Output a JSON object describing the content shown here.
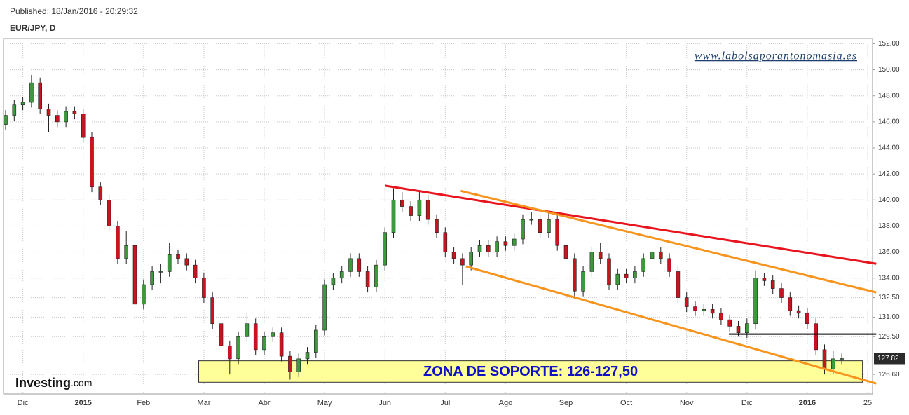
{
  "header": {
    "published": "Published: 18/Jan/2016 - 20:29:32",
    "symbol": "EUR/JPY, D"
  },
  "chart_data": {
    "type": "candlestick",
    "categories": [
      null,
      null,
      "Dic",
      null,
      null,
      null,
      null,
      null,
      null,
      "2015",
      null,
      null,
      null,
      null,
      null,
      null,
      "Feb",
      null,
      null,
      null,
      null,
      null,
      null,
      "Mar",
      null,
      null,
      null,
      null,
      null,
      null,
      "Abr",
      null,
      null,
      null,
      null,
      null,
      null,
      "May",
      null,
      null,
      null,
      null,
      null,
      null,
      "Jun",
      null,
      null,
      null,
      null,
      null,
      null,
      "Jul",
      null,
      null,
      null,
      null,
      null,
      null,
      "Ago",
      null,
      null,
      null,
      null,
      null,
      null,
      "Sep",
      null,
      null,
      null,
      null,
      null,
      null,
      "Oct",
      null,
      null,
      null,
      null,
      null,
      null,
      "Nov",
      null,
      null,
      null,
      null,
      null,
      null,
      "Dic",
      null,
      null,
      null,
      null,
      null,
      null,
      "2016",
      null,
      null,
      null,
      null,
      null,
      null,
      "25"
    ],
    "ohlc": [
      [
        145.8,
        146.9,
        145.4,
        146.5
      ],
      [
        146.5,
        147.7,
        146.1,
        147.3
      ],
      [
        147.3,
        147.9,
        146.9,
        147.5
      ],
      [
        147.5,
        149.6,
        147.1,
        149
      ],
      [
        149,
        149.4,
        146.6,
        147
      ],
      [
        147,
        147.4,
        145.2,
        146.5
      ],
      [
        146.5,
        146.9,
        145.6,
        146
      ],
      [
        146,
        147.2,
        145.6,
        146.8
      ],
      [
        146.8,
        147.2,
        146.2,
        146.6
      ],
      [
        146.6,
        147,
        144.4,
        144.8
      ],
      [
        144.8,
        145.2,
        140.6,
        141
      ],
      [
        141,
        141.4,
        139.6,
        140
      ],
      [
        140,
        140.4,
        137.6,
        138
      ],
      [
        138,
        138.4,
        135.1,
        135.5
      ],
      [
        135.5,
        137.6,
        135.1,
        136.5
      ],
      [
        136.5,
        136.9,
        130,
        132
      ],
      [
        132,
        133.9,
        131.6,
        133.5
      ],
      [
        133.5,
        134.9,
        133.1,
        134.5
      ],
      [
        134.5,
        135.1,
        133.6,
        134.5
      ],
      [
        134.5,
        136.7,
        134.1,
        135.8
      ],
      [
        135.8,
        136.2,
        135.1,
        135.5
      ],
      [
        135.5,
        135.9,
        134.6,
        135
      ],
      [
        135,
        135.4,
        133.6,
        134
      ],
      [
        134,
        134.4,
        132.1,
        132.5
      ],
      [
        132.5,
        132.9,
        130.1,
        130.5
      ],
      [
        130.5,
        130.9,
        128.4,
        128.8
      ],
      [
        128.8,
        129.2,
        126.6,
        127.8
      ],
      [
        127.8,
        129.9,
        127.4,
        129.5
      ],
      [
        129.5,
        131.3,
        129.1,
        130.5
      ],
      [
        130.5,
        130.9,
        128.1,
        128.5
      ],
      [
        128.5,
        129.9,
        128.1,
        129.5
      ],
      [
        129.5,
        130.2,
        129.1,
        129.8
      ],
      [
        129.8,
        130.2,
        127.6,
        128
      ],
      [
        128,
        128.4,
        126.2,
        126.8
      ],
      [
        126.8,
        128.2,
        126.4,
        127.8
      ],
      [
        127.8,
        128.7,
        127.4,
        128.3
      ],
      [
        128.3,
        130.4,
        127.9,
        130
      ],
      [
        130,
        133.9,
        129.6,
        133.5
      ],
      [
        133.5,
        134.4,
        133.1,
        134
      ],
      [
        134,
        134.9,
        133.6,
        134.5
      ],
      [
        134.5,
        135.9,
        134.1,
        135.5
      ],
      [
        135.5,
        135.9,
        134.1,
        134.5
      ],
      [
        134.5,
        134.9,
        132.9,
        133.3
      ],
      [
        133.3,
        135.4,
        132.9,
        135
      ],
      [
        135,
        137.9,
        134.6,
        137.5
      ],
      [
        137.5,
        140.9,
        137.1,
        140
      ],
      [
        140,
        140.6,
        139.1,
        139.5
      ],
      [
        139.5,
        139.9,
        138.4,
        138.8
      ],
      [
        138.8,
        140.6,
        138.4,
        140
      ],
      [
        140,
        140.4,
        138.1,
        138.5
      ],
      [
        138.5,
        138.9,
        137.1,
        137.5
      ],
      [
        137.5,
        137.9,
        135.6,
        136
      ],
      [
        136,
        136.4,
        135.1,
        135.5
      ],
      [
        135.5,
        135.9,
        133.5,
        135
      ],
      [
        135,
        136.4,
        134.6,
        136
      ],
      [
        136,
        136.9,
        135.6,
        136.5
      ],
      [
        136.5,
        136.9,
        135.6,
        136
      ],
      [
        136,
        137.2,
        135.6,
        136.8
      ],
      [
        136.8,
        137.2,
        136.1,
        136.5
      ],
      [
        136.5,
        137.4,
        136.1,
        137
      ],
      [
        137,
        138.9,
        136.6,
        138.5
      ],
      [
        138.5,
        139.1,
        138.1,
        138.5
      ],
      [
        138.5,
        138.9,
        137.1,
        137.5
      ],
      [
        137.5,
        139.1,
        137.1,
        138.5
      ],
      [
        138.5,
        138.9,
        136.1,
        136.5
      ],
      [
        136.5,
        136.9,
        135.1,
        135.5
      ],
      [
        135.5,
        135.9,
        132.4,
        133
      ],
      [
        133,
        134.9,
        132.6,
        134.5
      ],
      [
        134.5,
        136.4,
        134.1,
        136
      ],
      [
        136,
        136.7,
        135.1,
        135.5
      ],
      [
        135.5,
        135.9,
        133.1,
        133.5
      ],
      [
        133.5,
        134.7,
        133.1,
        134.3
      ],
      [
        134.3,
        134.7,
        133.6,
        134
      ],
      [
        134,
        134.9,
        133.6,
        134.5
      ],
      [
        134.5,
        135.9,
        134.1,
        135.5
      ],
      [
        135.5,
        136.8,
        135.1,
        136
      ],
      [
        136,
        136.4,
        135.1,
        135.5
      ],
      [
        135.5,
        135.9,
        134.1,
        134.5
      ],
      [
        134.5,
        134.9,
        132.1,
        132.5
      ],
      [
        132.5,
        132.9,
        131.4,
        131.8
      ],
      [
        131.8,
        132.2,
        131.1,
        131.5
      ],
      [
        131.5,
        132,
        131.1,
        131.6
      ],
      [
        131.6,
        132,
        130.9,
        131.3
      ],
      [
        131.3,
        131.7,
        130.4,
        130.8
      ],
      [
        130.8,
        131.2,
        129.9,
        130.3
      ],
      [
        130.3,
        130.7,
        129.5,
        129.8
      ],
      [
        129.8,
        130.9,
        129.4,
        130.5
      ],
      [
        130.5,
        134.6,
        130.1,
        134
      ],
      [
        134,
        134.4,
        133.4,
        133.8
      ],
      [
        133.8,
        134.2,
        132.8,
        133.2
      ],
      [
        133.2,
        133.6,
        132.1,
        132.5
      ],
      [
        132.5,
        132.9,
        131.1,
        131.5
      ],
      [
        131.5,
        131.9,
        130.9,
        131.3
      ],
      [
        131.3,
        131.7,
        130.1,
        130.5
      ],
      [
        130.5,
        130.9,
        128.1,
        128.5
      ],
      [
        128.5,
        128.9,
        126.6,
        127
      ],
      [
        127,
        128.4,
        126.6,
        127.8
      ],
      [
        127.8,
        128.2,
        127.4,
        127.82
      ],
      null,
      null,
      null
    ],
    "up_color": "#3c9a3c",
    "down_color": "#c8141e",
    "ylim": [
      125.1,
      152.4
    ],
    "yticks": [
      {
        "value": 126.6,
        "label": "126.60"
      },
      {
        "value": 129.5,
        "label": "129.50"
      },
      {
        "value": 131,
        "label": "131.00"
      },
      {
        "value": 132.5,
        "label": "132.50"
      },
      {
        "value": 134,
        "label": "134.00"
      },
      {
        "value": 136,
        "label": "136.00"
      },
      {
        "value": 138,
        "label": "138.00"
      },
      {
        "value": 140,
        "label": "140.00"
      },
      {
        "value": 142,
        "label": "142.00"
      },
      {
        "value": 144,
        "label": "144.00"
      },
      {
        "value": 146,
        "label": "146.00"
      },
      {
        "value": 148,
        "label": "148.00"
      },
      {
        "value": 150,
        "label": "150.00"
      },
      {
        "value": 152,
        "label": "152.00"
      }
    ],
    "grid": true,
    "lines": [
      {
        "color": "#e8141e",
        "from": [
          44,
          141.1
        ],
        "to": [
          101,
          135.1
        ]
      },
      {
        "color": "#f7941d",
        "from": [
          52.8,
          140.7
        ],
        "to": [
          101,
          132.9
        ]
      },
      {
        "color": "#f7941d",
        "from": [
          53.4,
          134.9
        ],
        "to": [
          101,
          125.9
        ]
      },
      {
        "color": "#000000",
        "from": [
          83.9,
          129.7
        ],
        "to": [
          101,
          129.7
        ]
      }
    ],
    "zone": {
      "label": "ZONA DE SOPORTE: 126-127,50",
      "from": [
        22.4,
        127.65
      ],
      "to": [
        99.4,
        126.0
      ],
      "color": "#ffff99"
    },
    "watermark": "www.labolsaporantonomasia.es",
    "logo": {
      "brand": "Investing",
      "suffix": ".com"
    }
  }
}
